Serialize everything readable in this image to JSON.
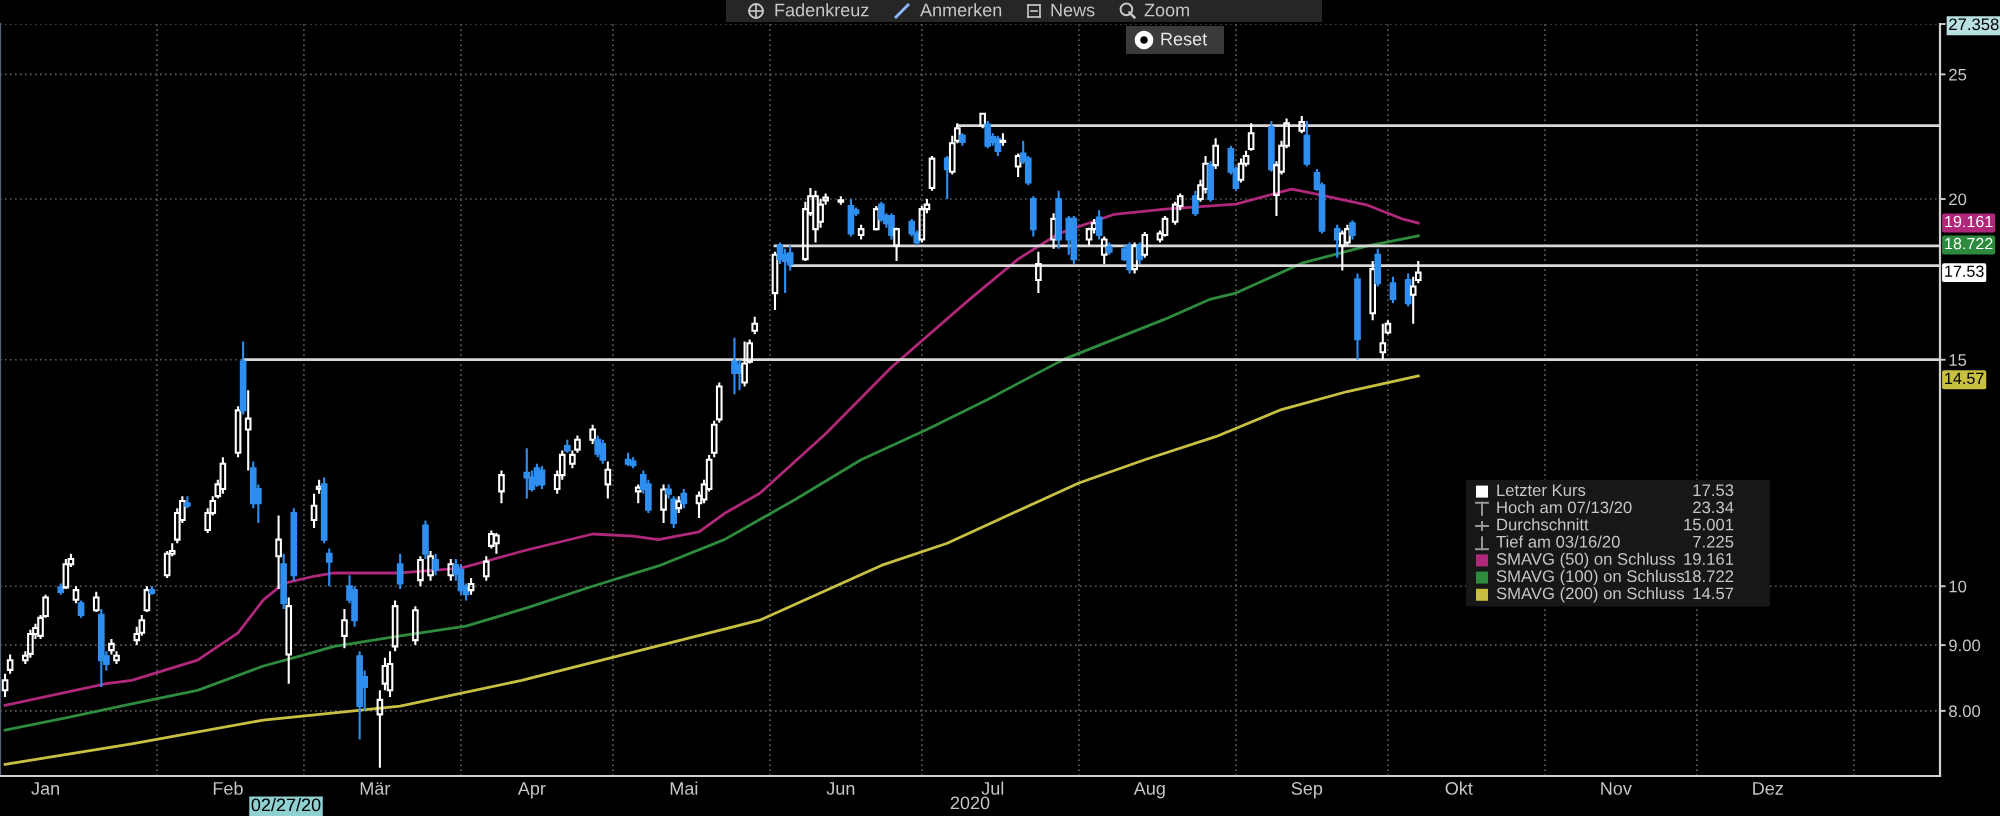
{
  "chart_data": {
    "type": "candlestick",
    "xlabel": "2020",
    "xlim": [
      "2020-01-01",
      "2021-01-18"
    ],
    "xticks": [
      {
        "value": "2020-01-10",
        "label": "Jan"
      },
      {
        "value": "2020-02-01",
        "label": null
      },
      {
        "value": "2020-02-15",
        "label": "Feb"
      },
      {
        "value": "2020-03-01",
        "label": null
      },
      {
        "value": "2020-03-15",
        "label": "Mär"
      },
      {
        "value": "2020-04-01",
        "label": null
      },
      {
        "value": "2020-04-15",
        "label": "Apr"
      },
      {
        "value": "2020-05-01",
        "label": null
      },
      {
        "value": "2020-05-15",
        "label": "Mai"
      },
      {
        "value": "2020-06-01",
        "label": null
      },
      {
        "value": "2020-06-15",
        "label": "Jun"
      },
      {
        "value": "2020-07-01",
        "label": null
      },
      {
        "value": "2020-07-15",
        "label": "Jul"
      },
      {
        "value": "2020-08-01",
        "label": null
      },
      {
        "value": "2020-08-15",
        "label": "Aug"
      },
      {
        "value": "2020-09-01",
        "label": null
      },
      {
        "value": "2020-09-15",
        "label": "Sep"
      },
      {
        "value": "2020-10-01",
        "label": null
      },
      {
        "value": "2020-10-15",
        "label": "Okt"
      },
      {
        "value": "2020-11-01",
        "label": null
      },
      {
        "value": "2020-11-15",
        "label": "Nov"
      },
      {
        "value": "2020-12-01",
        "label": null
      },
      {
        "value": "2020-12-15",
        "label": "Dez"
      },
      {
        "value": "2021-01-01",
        "label": null
      }
    ],
    "ylim": [
      7.12,
      27.358
    ],
    "yticks": [
      27.358,
      25,
      20,
      15,
      10,
      {
        "value": 9,
        "label": "9.00"
      },
      {
        "value": 8,
        "label": "8.00"
      }
    ],
    "log": true,
    "grid": true,
    "legend": "right",
    "series": [
      {
        "name": "Letzter Kurs",
        "x": [
          "2020-01-02",
          "2020-01-03",
          "2020-01-06",
          "2020-01-07",
          "2020-01-08",
          "2020-01-09",
          "2020-01-10",
          "2020-01-13",
          "2020-01-14",
          "2020-01-15",
          "2020-01-16",
          "2020-01-17",
          "2020-01-20",
          "2020-01-21",
          "2020-01-22",
          "2020-01-23",
          "2020-01-24",
          "2020-01-28",
          "2020-01-29",
          "2020-01-30",
          "2020-01-31",
          "2020-02-03",
          "2020-02-04",
          "2020-02-05",
          "2020-02-06",
          "2020-02-07",
          "2020-02-11",
          "2020-02-12",
          "2020-02-13",
          "2020-02-14",
          "2020-02-17",
          "2020-02-18",
          "2020-02-19",
          "2020-02-20",
          "2020-02-21",
          "2020-02-25",
          "2020-02-26",
          "2020-02-27",
          "2020-02-28",
          "2020-03-03",
          "2020-03-04",
          "2020-03-05",
          "2020-03-06",
          "2020-03-09",
          "2020-03-10",
          "2020-03-11",
          "2020-03-12",
          "2020-03-13",
          "2020-03-16",
          "2020-03-17",
          "2020-03-18",
          "2020-03-19",
          "2020-03-20",
          "2020-03-23",
          "2020-03-24",
          "2020-03-25",
          "2020-03-26",
          "2020-03-27",
          "2020-03-30",
          "2020-03-31",
          "2020-04-01",
          "2020-04-02",
          "2020-04-03",
          "2020-04-06",
          "2020-04-07",
          "2020-04-08",
          "2020-04-09",
          "2020-04-14",
          "2020-04-15",
          "2020-04-16",
          "2020-04-17",
          "2020-04-20",
          "2020-04-21",
          "2020-04-22",
          "2020-04-23",
          "2020-04-24",
          "2020-04-27",
          "2020-04-28",
          "2020-04-29",
          "2020-04-30",
          "2020-05-04",
          "2020-05-05",
          "2020-05-06",
          "2020-05-07",
          "2020-05-08",
          "2020-05-11",
          "2020-05-12",
          "2020-05-13",
          "2020-05-14",
          "2020-05-15",
          "2020-05-18",
          "2020-05-19",
          "2020-05-20",
          "2020-05-21",
          "2020-05-22",
          "2020-05-25",
          "2020-05-26",
          "2020-05-27",
          "2020-05-28",
          "2020-05-29",
          "2020-06-02",
          "2020-06-03",
          "2020-06-04",
          "2020-06-05",
          "2020-06-08",
          "2020-06-09",
          "2020-06-10",
          "2020-06-11",
          "2020-06-12",
          "2020-06-15",
          "2020-06-17",
          "2020-06-18",
          "2020-06-19",
          "2020-06-22",
          "2020-06-23",
          "2020-06-24",
          "2020-06-25",
          "2020-06-26",
          "2020-06-29",
          "2020-06-30",
          "2020-07-01",
          "2020-07-02",
          "2020-07-03",
          "2020-07-06",
          "2020-07-07",
          "2020-07-08",
          "2020-07-09",
          "2020-07-13",
          "2020-07-14",
          "2020-07-15",
          "2020-07-16",
          "2020-07-17",
          "2020-07-20",
          "2020-07-21",
          "2020-07-22",
          "2020-07-23",
          "2020-07-24",
          "2020-07-27",
          "2020-07-28",
          "2020-07-30",
          "2020-07-31",
          "2020-08-03",
          "2020-08-04",
          "2020-08-05",
          "2020-08-06",
          "2020-08-07",
          "2020-08-10",
          "2020-08-11",
          "2020-08-12",
          "2020-08-13",
          "2020-08-14",
          "2020-08-17",
          "2020-08-18",
          "2020-08-20",
          "2020-08-21",
          "2020-08-24",
          "2020-08-25",
          "2020-08-26",
          "2020-08-27",
          "2020-08-28",
          "2020-08-31",
          "2020-09-01",
          "2020-09-02",
          "2020-09-03",
          "2020-09-04",
          "2020-09-08",
          "2020-09-09",
          "2020-09-10",
          "2020-09-11",
          "2020-09-14",
          "2020-09-15",
          "2020-09-17",
          "2020-09-18",
          "2020-09-21",
          "2020-09-22",
          "2020-09-23",
          "2020-09-24",
          "2020-09-25",
          "2020-09-28",
          "2020-09-29",
          "2020-09-30",
          "2020-10-01",
          "2020-10-02",
          "2020-10-05",
          "2020-10-06",
          "2020-10-07"
        ],
        "ohlc": [
          [
            8.3,
            8.55,
            8.2,
            8.45
          ],
          [
            8.61,
            8.85,
            8.55,
            8.76
          ],
          [
            8.76,
            8.9,
            8.7,
            8.83
          ],
          [
            8.86,
            9.25,
            8.8,
            9.18
          ],
          [
            9.18,
            9.35,
            9.1,
            9.28
          ],
          [
            9.15,
            9.5,
            9.1,
            9.45
          ],
          [
            9.48,
            9.85,
            9.45,
            9.8
          ],
          [
            9.98,
            10.05,
            9.85,
            9.9
          ],
          [
            9.98,
            10.5,
            9.95,
            10.4
          ],
          [
            10.4,
            10.6,
            10.35,
            10.5
          ],
          [
            9.76,
            10.0,
            9.7,
            9.93
          ],
          [
            9.7,
            9.75,
            9.45,
            9.5
          ],
          [
            9.58,
            9.9,
            9.55,
            9.8
          ],
          [
            9.5,
            9.6,
            8.35,
            8.76
          ],
          [
            8.82,
            8.9,
            8.6,
            8.7
          ],
          [
            8.92,
            9.1,
            8.85,
            9.02
          ],
          [
            8.76,
            8.9,
            8.7,
            8.83
          ],
          [
            9.08,
            9.3,
            9.0,
            9.18
          ],
          [
            9.2,
            9.5,
            9.15,
            9.41
          ],
          [
            9.58,
            10.0,
            9.55,
            9.93
          ],
          [
            9.93,
            10.0,
            9.85,
            9.88
          ],
          [
            10.2,
            10.65,
            10.15,
            10.6
          ],
          [
            10.6,
            10.8,
            10.55,
            10.65
          ],
          [
            10.87,
            11.5,
            10.8,
            11.4
          ],
          [
            11.26,
            11.75,
            11.2,
            11.65
          ],
          [
            11.6,
            11.75,
            11.5,
            11.55
          ],
          [
            11.06,
            11.5,
            11.0,
            11.4
          ],
          [
            11.4,
            11.75,
            11.35,
            11.65
          ],
          [
            11.75,
            12.1,
            11.7,
            12.0
          ],
          [
            11.9,
            12.6,
            11.8,
            12.45
          ],
          [
            12.7,
            13.8,
            12.6,
            13.7
          ],
          [
            14.95,
            15.5,
            13.6,
            13.7
          ],
          [
            13.24,
            14.2,
            12.3,
            13.5
          ],
          [
            12.35,
            12.5,
            11.5,
            11.6
          ],
          [
            11.9,
            12.0,
            11.2,
            11.6
          ],
          [
            10.55,
            11.35,
            9.95,
            10.87
          ],
          [
            10.4,
            10.6,
            9.6,
            9.7
          ],
          [
            8.85,
            9.8,
            8.4,
            9.65
          ],
          [
            11.4,
            11.5,
            10.1,
            10.2
          ],
          [
            11.26,
            11.8,
            11.1,
            11.55
          ],
          [
            11.9,
            12.1,
            11.8,
            11.95
          ],
          [
            12.0,
            12.15,
            10.8,
            10.87
          ],
          [
            10.6,
            10.7,
            10.0,
            10.45
          ],
          [
            9.15,
            9.6,
            8.95,
            9.41
          ],
          [
            10.0,
            10.2,
            9.7,
            9.76
          ],
          [
            9.93,
            10.0,
            9.3,
            9.41
          ],
          [
            8.82,
            8.9,
            7.6,
            8.07
          ],
          [
            8.5,
            8.6,
            8.0,
            8.35
          ],
          [
            7.95,
            8.3,
            7.225,
            8.16
          ],
          [
            8.4,
            8.8,
            8.3,
            8.67
          ],
          [
            8.3,
            8.9,
            8.2,
            8.7
          ],
          [
            8.98,
            9.75,
            8.9,
            9.65
          ],
          [
            10.4,
            10.6,
            9.95,
            10.05
          ],
          [
            9.08,
            9.65,
            9.0,
            9.58
          ],
          [
            10.11,
            10.55,
            10.0,
            10.48
          ],
          [
            11.15,
            11.25,
            10.5,
            10.6
          ],
          [
            10.2,
            10.65,
            10.1,
            10.55
          ],
          [
            10.48,
            10.6,
            10.2,
            10.3
          ],
          [
            10.2,
            10.5,
            10.1,
            10.4
          ],
          [
            10.38,
            10.5,
            10.1,
            10.22
          ],
          [
            10.3,
            10.4,
            9.85,
            9.93
          ],
          [
            10.0,
            10.05,
            9.75,
            9.86
          ],
          [
            9.93,
            10.15,
            9.85,
            10.04
          ],
          [
            10.18,
            10.55,
            10.1,
            10.45
          ],
          [
            10.75,
            11.05,
            10.7,
            10.98
          ],
          [
            10.8,
            11.0,
            10.6,
            10.95
          ],
          [
            11.85,
            12.3,
            11.6,
            12.2
          ],
          [
            12.25,
            12.8,
            11.7,
            12.15
          ],
          [
            12.15,
            12.3,
            11.85,
            11.9
          ],
          [
            12.35,
            12.45,
            11.95,
            12.0
          ],
          [
            12.3,
            12.4,
            11.9,
            12.0
          ],
          [
            11.9,
            12.3,
            11.8,
            12.2
          ],
          [
            12.2,
            12.75,
            12.1,
            12.65
          ],
          [
            12.85,
            13.0,
            12.7,
            12.75
          ],
          [
            12.45,
            12.75,
            12.35,
            12.65
          ],
          [
            12.77,
            13.1,
            12.7,
            13.0
          ],
          [
            13.0,
            13.35,
            12.9,
            13.24
          ],
          [
            13.0,
            13.1,
            12.6,
            12.68
          ],
          [
            12.9,
            13.0,
            12.45,
            12.54
          ],
          [
            12.0,
            12.5,
            11.7,
            12.32
          ],
          [
            12.54,
            12.7,
            12.4,
            12.45
          ],
          [
            12.5,
            12.6,
            12.35,
            12.42
          ],
          [
            11.85,
            12.0,
            11.6,
            11.93
          ],
          [
            12.2,
            12.3,
            11.8,
            11.9
          ],
          [
            12.0,
            12.1,
            11.4,
            11.47
          ],
          [
            11.47,
            12.0,
            11.2,
            11.89
          ],
          [
            11.89,
            12.0,
            11.7,
            11.8
          ],
          [
            11.68,
            11.75,
            11.1,
            11.2
          ],
          [
            11.5,
            11.75,
            11.4,
            11.64
          ],
          [
            11.8,
            11.9,
            11.5,
            11.6
          ],
          [
            11.6,
            11.85,
            11.3,
            11.76
          ],
          [
            11.68,
            12.1,
            11.6,
            12.0
          ],
          [
            11.9,
            12.65,
            11.85,
            12.54
          ],
          [
            12.7,
            13.45,
            12.6,
            13.35
          ],
          [
            13.48,
            14.4,
            13.4,
            14.3
          ],
          [
            14.95,
            15.6,
            14.1,
            14.65
          ],
          [
            14.85,
            15.0,
            14.2,
            14.65
          ],
          [
            14.4,
            15.5,
            14.3,
            14.9
          ],
          [
            14.95,
            15.55,
            14.9,
            15.45
          ],
          [
            15.8,
            16.2,
            15.7,
            16.0
          ],
          [
            16.9,
            18.2,
            16.4,
            18.1
          ],
          [
            18.4,
            18.5,
            17.8,
            17.96
          ],
          [
            18.1,
            18.3,
            16.9,
            17.9
          ],
          [
            18.15,
            18.4,
            17.6,
            17.8
          ],
          [
            17.96,
            19.9,
            17.9,
            19.64
          ],
          [
            19.5,
            20.4,
            19.4,
            20.1
          ],
          [
            18.95,
            20.3,
            18.5,
            20.1
          ],
          [
            19.2,
            20.0,
            19.0,
            19.8
          ],
          [
            19.95,
            20.2,
            19.8,
            20.05
          ],
          [
            19.9,
            20.1,
            19.8,
            19.95
          ],
          [
            19.75,
            20.0,
            18.7,
            18.8
          ],
          [
            19.6,
            19.7,
            19.4,
            19.5
          ],
          [
            18.75,
            19.1,
            18.6,
            18.95
          ],
          [
            18.95,
            19.75,
            18.9,
            19.64
          ],
          [
            19.8,
            19.9,
            19.2,
            19.29
          ],
          [
            19.4,
            19.5,
            19.0,
            19.15
          ],
          [
            19.4,
            19.5,
            18.6,
            18.75
          ],
          [
            18.4,
            19.0,
            17.9,
            18.95
          ],
          [
            19.2,
            19.3,
            18.7,
            18.8
          ],
          [
            18.8,
            18.9,
            18.4,
            18.5
          ],
          [
            18.6,
            19.75,
            18.5,
            19.64
          ],
          [
            19.64,
            20.0,
            19.5,
            19.8
          ],
          [
            20.4,
            21.6,
            20.3,
            21.5
          ],
          [
            21.5,
            21.6,
            20.0,
            21.1
          ],
          [
            21.0,
            22.4,
            20.9,
            22.1
          ],
          [
            22.2,
            22.9,
            22.1,
            22.7
          ],
          [
            22.4,
            22.5,
            22.0,
            22.15
          ],
          [
            22.8,
            23.34,
            22.7,
            23.3
          ],
          [
            22.85,
            23.0,
            21.9,
            22.0
          ],
          [
            22.35,
            22.5,
            22.0,
            22.15
          ],
          [
            22.27,
            22.4,
            21.6,
            21.8
          ],
          [
            22.15,
            22.5,
            22.0,
            22.2
          ],
          [
            21.2,
            21.7,
            20.8,
            21.6
          ],
          [
            21.7,
            22.2,
            21.3,
            21.4
          ],
          [
            21.5,
            21.6,
            20.5,
            20.6
          ],
          [
            20.0,
            20.1,
            18.7,
            18.95
          ],
          [
            17.3,
            18.2,
            16.9,
            17.8
          ],
          [
            18.6,
            19.5,
            18.3,
            19.3
          ],
          [
            20.0,
            20.3,
            18.3,
            18.6
          ],
          [
            19.3,
            19.4,
            18.1,
            18.6
          ],
          [
            19.3,
            19.4,
            17.8,
            17.96
          ],
          [
            18.6,
            19.0,
            18.4,
            18.95
          ],
          [
            18.95,
            19.3,
            18.8,
            19.15
          ],
          [
            19.35,
            19.6,
            18.6,
            18.75
          ],
          [
            18.1,
            18.7,
            17.8,
            18.6
          ],
          [
            18.35,
            18.5,
            18.1,
            18.2
          ],
          [
            18.28,
            18.4,
            17.9,
            17.96
          ],
          [
            18.4,
            18.5,
            17.5,
            17.64
          ],
          [
            17.64,
            18.5,
            17.5,
            18.4
          ],
          [
            18.4,
            18.5,
            17.8,
            17.96
          ],
          [
            18.1,
            18.85,
            18.0,
            18.75
          ],
          [
            18.6,
            18.9,
            18.5,
            18.8
          ],
          [
            18.75,
            19.4,
            18.7,
            19.3
          ],
          [
            19.2,
            19.9,
            19.1,
            19.8
          ],
          [
            19.75,
            20.2,
            19.6,
            20.1
          ],
          [
            20.1,
            20.3,
            19.4,
            19.5
          ],
          [
            20.0,
            20.7,
            19.9,
            20.5
          ],
          [
            20.36,
            21.6,
            20.2,
            21.3
          ],
          [
            21.25,
            21.4,
            19.9,
            20.0
          ],
          [
            21.25,
            22.3,
            21.1,
            22.0
          ],
          [
            21.87,
            22.0,
            20.9,
            21.0
          ],
          [
            21.1,
            21.2,
            20.3,
            20.4
          ],
          [
            20.7,
            21.5,
            20.6,
            21.3
          ],
          [
            21.3,
            21.8,
            21.2,
            21.6
          ],
          [
            21.87,
            22.9,
            21.8,
            22.5
          ],
          [
            22.75,
            23.0,
            21.0,
            21.1
          ],
          [
            20.15,
            21.4,
            19.4,
            21.25
          ],
          [
            21.0,
            22.2,
            20.9,
            22.0
          ],
          [
            22.0,
            23.1,
            21.9,
            22.9
          ],
          [
            22.6,
            23.2,
            22.5,
            22.95
          ],
          [
            22.4,
            23.0,
            21.2,
            21.3
          ],
          [
            20.95,
            21.1,
            20.3,
            20.36
          ],
          [
            20.5,
            20.6,
            18.8,
            18.9
          ],
          [
            18.95,
            19.1,
            18.0,
            18.6
          ],
          [
            18.4,
            18.9,
            17.6,
            18.8
          ],
          [
            18.5,
            19.1,
            18.4,
            18.95
          ],
          [
            19.15,
            19.25,
            18.6,
            18.75
          ],
          [
            17.32,
            17.5,
            15.0,
            15.56
          ],
          [
            16.3,
            17.9,
            16.1,
            17.64
          ],
          [
            18.1,
            18.3,
            17.1,
            17.2
          ],
          [
            15.2,
            16.0,
            15.0,
            15.45
          ],
          [
            15.75,
            16.1,
            15.7,
            16.0
          ],
          [
            17.2,
            17.4,
            16.6,
            16.72
          ],
          [
            17.3,
            17.5,
            16.5,
            16.6
          ],
          [
            16.85,
            17.4,
            16.0,
            17.1
          ],
          [
            17.3,
            17.9,
            17.2,
            17.53
          ]
        ],
        "colors": [
          "#ffffff",
          "#ffffff",
          "#ffffff",
          "#ffffff",
          "#ffffff",
          "#ffffff",
          "#ffffff",
          "#2f8ff0",
          "#ffffff",
          "#ffffff",
          "#ffffff",
          "#2f8ff0",
          "#ffffff",
          "#2f8ff0",
          "#2f8ff0",
          "#ffffff",
          "#ffffff",
          "#ffffff",
          "#ffffff",
          "#ffffff",
          "#2f8ff0",
          "#ffffff",
          "#ffffff",
          "#ffffff",
          "#ffffff",
          "#2f8ff0",
          "#ffffff",
          "#ffffff",
          "#ffffff",
          "#ffffff",
          "#ffffff",
          "#2f8ff0",
          "#ffffff",
          "#2f8ff0",
          "#2f8ff0",
          "#ffffff",
          "#2f8ff0",
          "#ffffff",
          "#2f8ff0",
          "#ffffff",
          "#ffffff",
          "#2f8ff0",
          "#2f8ff0",
          "#ffffff",
          "#2f8ff0",
          "#2f8ff0",
          "#2f8ff0",
          "#2f8ff0",
          "#ffffff",
          "#ffffff",
          "#ffffff",
          "#ffffff",
          "#2f8ff0",
          "#ffffff",
          "#ffffff",
          "#2f8ff0",
          "#ffffff",
          "#2f8ff0",
          "#ffffff",
          "#2f8ff0",
          "#2f8ff0",
          "#2f8ff0",
          "#ffffff",
          "#ffffff",
          "#ffffff",
          "#ffffff",
          "#ffffff",
          "#2f8ff0",
          "#2f8ff0",
          "#2f8ff0",
          "#2f8ff0",
          "#ffffff",
          "#ffffff",
          "#2f8ff0",
          "#ffffff",
          "#ffffff",
          "#ffffff",
          "#2f8ff0",
          "#2f8ff0",
          "#ffffff",
          "#2f8ff0",
          "#2f8ff0",
          "#ffffff",
          "#2f8ff0",
          "#2f8ff0",
          "#ffffff",
          "#2f8ff0",
          "#2f8ff0",
          "#ffffff",
          "#2f8ff0",
          "#ffffff",
          "#ffffff",
          "#ffffff",
          "#ffffff",
          "#ffffff",
          "#2f8ff0",
          "#2f8ff0",
          "#ffffff",
          "#ffffff",
          "#ffffff",
          "#ffffff",
          "#2f8ff0",
          "#2f8ff0",
          "#2f8ff0",
          "#ffffff",
          "#ffffff",
          "#ffffff",
          "#ffffff",
          "#ffffff",
          "#ffffff",
          "#2f8ff0",
          "#2f8ff0",
          "#ffffff",
          "#ffffff",
          "#2f8ff0",
          "#2f8ff0",
          "#2f8ff0",
          "#ffffff",
          "#2f8ff0",
          "#2f8ff0",
          "#ffffff",
          "#ffffff",
          "#ffffff",
          "#2f8ff0",
          "#ffffff",
          "#ffffff",
          "#2f8ff0",
          "#ffffff",
          "#2f8ff0",
          "#2f8ff0",
          "#2f8ff0",
          "#ffffff",
          "#ffffff",
          "#2f8ff0",
          "#2f8ff0",
          "#2f8ff0",
          "#ffffff",
          "#ffffff",
          "#2f8ff0",
          "#2f8ff0",
          "#2f8ff0",
          "#ffffff",
          "#ffffff",
          "#2f8ff0",
          "#ffffff",
          "#2f8ff0",
          "#2f8ff0",
          "#2f8ff0",
          "#ffffff",
          "#2f8ff0",
          "#ffffff",
          "#ffffff",
          "#ffffff",
          "#ffffff",
          "#ffffff",
          "#2f8ff0",
          "#ffffff",
          "#ffffff",
          "#2f8ff0",
          "#ffffff",
          "#2f8ff0",
          "#2f8ff0",
          "#ffffff",
          "#ffffff",
          "#ffffff",
          "#2f8ff0",
          "#ffffff",
          "#ffffff",
          "#ffffff",
          "#ffffff",
          "#2f8ff0",
          "#2f8ff0",
          "#2f8ff0",
          "#2f8ff0",
          "#ffffff",
          "#ffffff",
          "#2f8ff0",
          "#2f8ff0",
          "#ffffff",
          "#2f8ff0",
          "#ffffff",
          "#ffffff",
          "#2f8ff0",
          "#2f8ff0",
          "#ffffff",
          "#ffffff"
        ]
      },
      {
        "name": "SMAVG (50) on Schluss",
        "type": "line",
        "color": "#b0287a",
        "x": [
          "2020-01-02",
          "2020-01-22",
          "2020-01-27",
          "2020-02-09",
          "2020-02-17",
          "2020-02-22",
          "2020-02-26",
          "2020-03-03",
          "2020-03-07",
          "2020-03-20",
          "2020-04-01",
          "2020-04-14",
          "2020-04-27",
          "2020-05-05",
          "2020-05-10",
          "2020-05-18",
          "2020-05-23",
          "2020-05-30",
          "2020-06-12",
          "2020-06-25",
          "2020-07-10",
          "2020-07-20",
          "2020-07-28",
          "2020-08-08",
          "2020-08-18",
          "2020-09-01",
          "2020-09-12",
          "2020-09-16",
          "2020-09-27",
          "2020-10-04",
          "2020-10-07"
        ],
        "values": [
          8.08,
          8.4,
          8.45,
          8.76,
          9.2,
          9.76,
          10.05,
          10.18,
          10.24,
          10.24,
          10.33,
          10.67,
          10.98,
          10.94,
          10.87,
          11.02,
          11.39,
          11.81,
          13.14,
          14.8,
          16.66,
          17.96,
          18.8,
          19.46,
          19.64,
          19.82,
          20.36,
          20.21,
          19.78,
          19.29,
          19.161
        ]
      },
      {
        "name": "SMAVG (100) on Schluss",
        "type": "line",
        "color": "#2e8b3e",
        "x": [
          "2020-01-02",
          "2020-01-14",
          "2020-01-27",
          "2020-02-09",
          "2020-02-22",
          "2020-02-29",
          "2020-03-07",
          "2020-03-20",
          "2020-04-02",
          "2020-04-14",
          "2020-04-27",
          "2020-05-10",
          "2020-05-23",
          "2020-06-06",
          "2020-06-19",
          "2020-07-02",
          "2020-07-14",
          "2020-07-29",
          "2020-08-18",
          "2020-08-27",
          "2020-09-01",
          "2020-09-14",
          "2020-09-27",
          "2020-10-07"
        ],
        "values": [
          7.73,
          7.9,
          8.1,
          8.3,
          8.67,
          8.82,
          8.98,
          9.15,
          9.31,
          9.62,
          10.0,
          10.37,
          10.87,
          11.68,
          12.54,
          13.24,
          13.97,
          15.01,
          16.13,
          16.72,
          16.9,
          17.83,
          18.39,
          18.722
        ]
      },
      {
        "name": "SMAVG (200) on Schluss",
        "type": "line",
        "color": "#c8c040",
        "x": [
          "2020-01-02",
          "2020-01-27",
          "2020-02-22",
          "2020-03-20",
          "2020-04-13",
          "2020-05-30",
          "2020-06-23",
          "2020-07-06",
          "2020-07-19",
          "2020-08-01",
          "2020-08-14",
          "2020-08-28",
          "2020-09-10",
          "2020-09-23",
          "2020-10-07"
        ],
        "values": [
          7.27,
          7.54,
          7.87,
          8.07,
          8.45,
          9.41,
          10.38,
          10.8,
          11.4,
          12.03,
          12.54,
          13.07,
          13.72,
          14.17,
          14.57
        ]
      },
      {
        "type": "line",
        "color": "#d9d9d9",
        "x": [
          "2020-07-08",
          "2021-01-18"
        ],
        "values": [
          22.81,
          22.81
        ]
      },
      {
        "type": "line",
        "color": "#d9d9d9",
        "x": [
          "2020-06-02",
          "2021-01-18"
        ],
        "values": [
          18.39,
          18.39
        ]
      },
      {
        "type": "line",
        "color": "#d9d9d9",
        "x": [
          "2020-06-05",
          "2021-01-18"
        ],
        "values": [
          17.75,
          17.75
        ]
      },
      {
        "type": "line",
        "color": "#d9d9d9",
        "x": [
          "2020-02-18",
          "2021-01-18"
        ],
        "values": [
          15.0,
          15.0
        ]
      }
    ],
    "annotations": [
      "Fadenkreuz",
      "Anmerken",
      "News",
      "Zoom",
      "Reset",
      "02/27/20",
      "17.53",
      "Hoch am 07/13/20",
      "23.34",
      "Durchschnitt",
      "15.001",
      "Tief am 03/16/20",
      "7.225",
      "19.161",
      "18.722",
      "14.57"
    ]
  }
}
